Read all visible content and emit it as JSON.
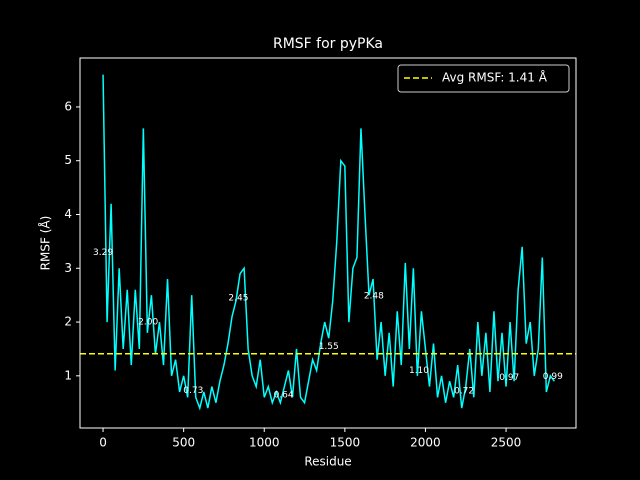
{
  "chart_data": {
    "type": "line",
    "title": "RMSF for pyPKa",
    "x_label": "Residue",
    "y_label": "RMSF (Å)",
    "x": [
      0,
      25,
      50,
      75,
      100,
      125,
      150,
      175,
      200,
      225,
      250,
      275,
      300,
      325,
      350,
      375,
      400,
      425,
      450,
      475,
      500,
      525,
      550,
      575,
      600,
      625,
      650,
      675,
      700,
      725,
      750,
      775,
      800,
      825,
      850,
      875,
      900,
      925,
      950,
      975,
      1000,
      1025,
      1050,
      1075,
      1100,
      1125,
      1150,
      1175,
      1200,
      1225,
      1250,
      1275,
      1300,
      1325,
      1350,
      1375,
      1400,
      1425,
      1450,
      1475,
      1500,
      1525,
      1550,
      1575,
      1600,
      1625,
      1650,
      1675,
      1700,
      1725,
      1750,
      1775,
      1800,
      1825,
      1850,
      1875,
      1900,
      1925,
      1950,
      1975,
      2000,
      2025,
      2050,
      2075,
      2100,
      2125,
      2150,
      2175,
      2200,
      2225,
      2250,
      2275,
      2300,
      2325,
      2350,
      2375,
      2400,
      2425,
      2450,
      2475,
      2500,
      2525,
      2550,
      2575,
      2600,
      2625,
      2650,
      2675,
      2700,
      2725,
      2750,
      2775,
      2800
    ],
    "series": [
      {
        "name": "RMSF",
        "color": "#00ffff",
        "values": [
          6.6,
          2.0,
          4.2,
          1.1,
          3.0,
          1.5,
          2.6,
          1.2,
          2.6,
          1.5,
          5.6,
          1.8,
          2.5,
          1.4,
          2.0,
          1.2,
          2.8,
          1.0,
          1.3,
          0.7,
          1.0,
          0.6,
          2.5,
          0.6,
          0.4,
          0.7,
          0.4,
          0.8,
          0.5,
          0.9,
          1.2,
          1.6,
          2.1,
          2.4,
          2.9,
          3.0,
          1.5,
          1.0,
          0.8,
          1.3,
          0.6,
          0.8,
          0.5,
          0.7,
          0.5,
          0.8,
          1.1,
          0.6,
          1.5,
          0.6,
          0.5,
          0.9,
          1.3,
          1.1,
          1.6,
          2.0,
          1.7,
          2.4,
          3.5,
          5.0,
          4.9,
          2.0,
          3.0,
          3.2,
          5.6,
          4.0,
          2.5,
          2.8,
          1.3,
          2.0,
          1.0,
          1.8,
          0.8,
          2.2,
          1.2,
          3.1,
          1.5,
          3.0,
          1.0,
          2.2,
          1.5,
          0.8,
          1.6,
          0.6,
          1.0,
          0.5,
          0.9,
          0.6,
          1.2,
          0.4,
          0.8,
          1.5,
          0.6,
          2.0,
          1.0,
          1.8,
          0.7,
          2.2,
          0.9,
          1.8,
          0.8,
          2.0,
          0.9,
          2.6,
          3.4,
          1.6,
          2.0,
          1.0,
          1.5,
          3.2,
          0.7,
          1.0,
          0.9
        ]
      }
    ],
    "hline": {
      "value": 1.41,
      "label": "Avg RMSF: 1.41 Å",
      "color": "#ffff00"
    },
    "annotations": {
      "x": [
        0,
        280,
        840,
        560,
        1120,
        1400,
        1680,
        1960,
        2240,
        2520,
        2790
      ],
      "values": [
        3.29,
        2.0,
        2.45,
        0.73,
        0.64,
        1.55,
        2.48,
        1.1,
        0.72,
        0.97,
        0.99
      ],
      "value_labels": [
        "3.29",
        "2.00",
        "2.45",
        "0.73",
        "0.64",
        "1.55",
        "2.48",
        "1.10",
        "0.72",
        "0.97",
        "0.99"
      ]
    },
    "xlim": [
      -143,
      2934
    ],
    "ylim": [
      0.03,
      6.91
    ],
    "xticks": [
      0,
      500,
      1000,
      1500,
      2000,
      2500
    ],
    "yticks": [
      1,
      2,
      3,
      4,
      5,
      6
    ],
    "legend": "upper right"
  }
}
